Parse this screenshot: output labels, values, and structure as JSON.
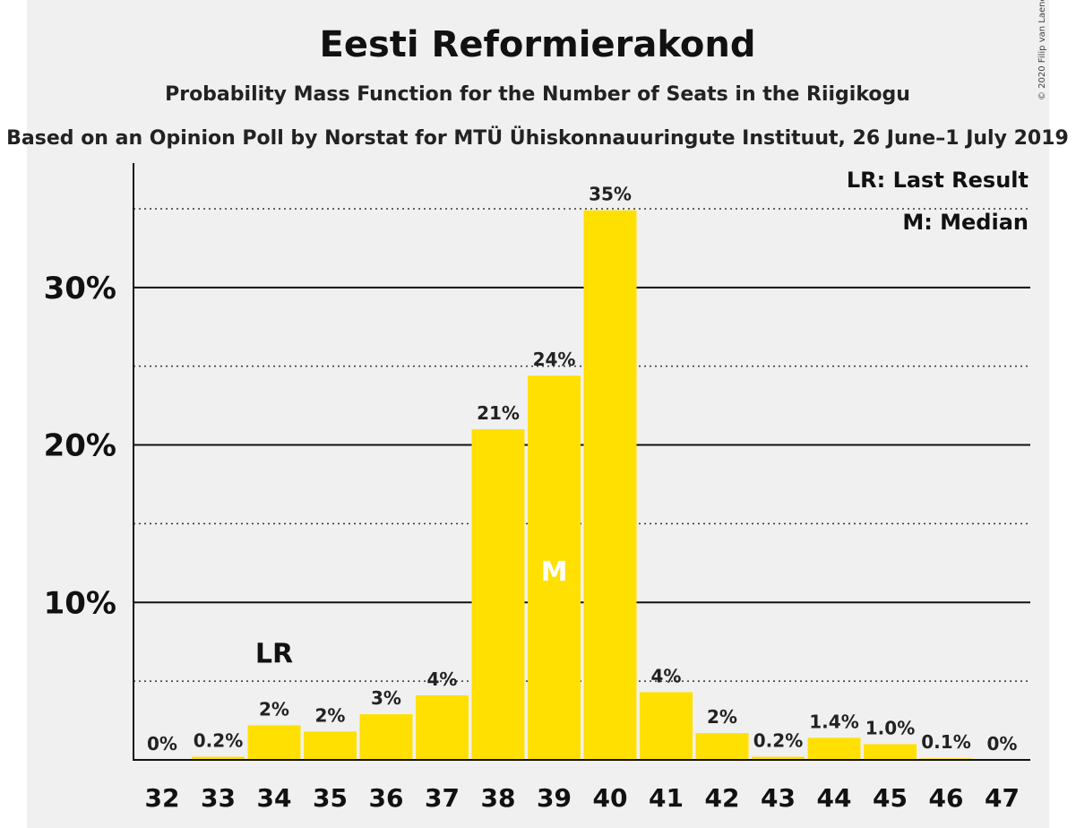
{
  "chart_data": {
    "type": "bar",
    "title": "Eesti Reformierakond",
    "subtitle": "Probability Mass Function for the Number of Seats in the Riigikogu",
    "source": "Based on an Opinion Poll by Norstat for MTÜ Ühiskonnauuringute Instituut, 26 June–1 July 2019",
    "copyright": "© 2020 Filip van Laenen",
    "categories": [
      "32",
      "33",
      "34",
      "35",
      "36",
      "37",
      "38",
      "39",
      "40",
      "41",
      "42",
      "43",
      "44",
      "45",
      "46",
      "47"
    ],
    "values": [
      0,
      0.2,
      2.2,
      1.8,
      2.9,
      4.1,
      21.0,
      24.4,
      34.9,
      4.3,
      1.7,
      0.2,
      1.4,
      1.0,
      0.1,
      0
    ],
    "value_labels": [
      "0%",
      "0.2%",
      "2%",
      "2%",
      "3%",
      "4%",
      "21%",
      "24%",
      "35%",
      "4%",
      "2%",
      "0.2%",
      "1.4%",
      "1.0%",
      "0.1%",
      "0%"
    ],
    "ylim": [
      0,
      37.9
    ],
    "yticks": [
      10,
      20,
      30
    ],
    "ytick_labels": [
      "10%",
      "20%",
      "30%"
    ],
    "minor_gridlines": [
      5,
      15,
      25,
      35
    ],
    "last_result_index": 2,
    "last_result_label": "LR",
    "median_index": 7,
    "median_label": "M",
    "legend": [
      "LR: Last Result",
      "M: Median"
    ],
    "legend_position": "top-right",
    "bar_color": "#FFE000",
    "background_color": "#F0F0F0"
  }
}
